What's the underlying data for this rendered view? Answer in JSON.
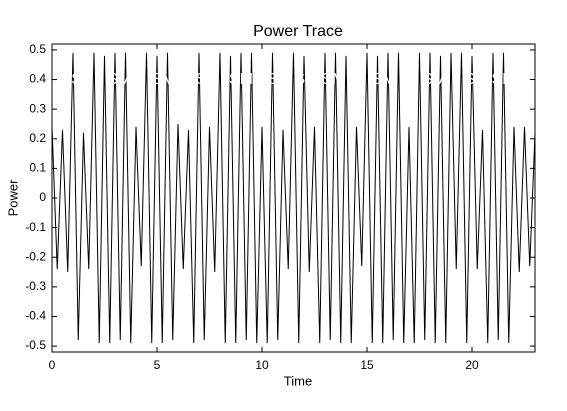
{
  "chart_data": {
    "type": "line",
    "title": "Power Trace",
    "x_label": "Time",
    "y_label": "Power",
    "color": "#000000",
    "x": [
      0,
      0.25,
      0.5,
      0.75,
      1,
      1.25,
      1.5,
      1.75,
      2,
      2.25,
      2.5,
      2.75,
      3,
      3.25,
      3.5,
      3.75,
      4,
      4.25,
      4.5,
      4.75,
      5,
      5.25,
      5.5,
      5.75,
      6,
      6.25,
      6.5,
      6.75,
      7,
      7.25,
      7.5,
      7.75,
      8,
      8.25,
      8.5,
      8.75,
      9,
      9.25,
      9.5,
      9.75,
      10,
      10.25,
      10.5,
      10.75,
      11,
      11.25,
      11.5,
      11.75,
      12,
      12.25,
      12.5,
      12.75,
      13,
      13.25,
      13.5,
      13.75,
      14,
      14.25,
      14.5,
      14.75,
      15,
      15.25,
      15.5,
      15.75,
      16,
      16.25,
      16.5,
      16.75,
      17,
      17.25,
      17.5,
      17.75,
      18,
      18.25,
      18.5,
      18.75,
      19,
      19.25,
      19.5,
      19.75,
      20,
      20.25,
      20.5,
      20.75,
      21,
      21.25,
      21.5,
      21.75,
      22,
      22.25,
      22.5,
      22.75,
      23
    ],
    "values": [
      0.24,
      -0.24,
      0.23,
      -0.25,
      0.49,
      -0.48,
      0.22,
      -0.24,
      0.49,
      -0.49,
      0.48,
      -0.49,
      0.49,
      -0.48,
      0.49,
      -0.49,
      0.24,
      -0.23,
      0.49,
      -0.49,
      0.48,
      -0.49,
      0.49,
      -0.48,
      0.25,
      -0.24,
      0.23,
      -0.49,
      0.49,
      -0.48,
      0.24,
      -0.25,
      0.49,
      -0.49,
      0.48,
      -0.49,
      0.49,
      -0.48,
      0.49,
      -0.49,
      0.24,
      -0.49,
      0.49,
      -0.48,
      0.23,
      -0.24,
      0.49,
      -0.49,
      0.48,
      -0.25,
      0.24,
      -0.49,
      0.49,
      -0.48,
      0.49,
      -0.49,
      0.48,
      -0.49,
      0.24,
      -0.23,
      0.49,
      -0.49,
      0.48,
      -0.49,
      0.49,
      -0.48,
      0.49,
      -0.49,
      0.24,
      -0.49,
      0.49,
      -0.48,
      0.49,
      -0.49,
      0.48,
      -0.49,
      0.49,
      -0.24,
      0.49,
      -0.49,
      0.48,
      -0.24,
      0.23,
      -0.49,
      0.49,
      -0.48,
      0.49,
      -0.49,
      0.24,
      -0.25,
      0.24,
      -0.23,
      0.22
    ],
    "xlim": [
      0,
      23
    ],
    "xticks": [
      0,
      5,
      10,
      15,
      20
    ],
    "ylim": [
      -0.52,
      0.52
    ],
    "yticks": [
      -0.5,
      -0.4,
      -0.3,
      -0.2,
      -0.1,
      0,
      0.1,
      0.2,
      0.3,
      0.4,
      0.5
    ],
    "annotations": [
      {
        "text": "S",
        "x": 1.17,
        "y": 0.4
      },
      {
        "text": "SM",
        "x": 3.2,
        "y": 0.4
      },
      {
        "text": "SM",
        "x": 5.3,
        "y": 0.4
      },
      {
        "text": "S",
        "x": 7.1,
        "y": 0.4
      },
      {
        "text": "SM",
        "x": 9.0,
        "y": 0.4
      },
      {
        "text": "S",
        "x": 10.5,
        "y": 0.4
      },
      {
        "text": "S",
        "x": 11.8,
        "y": 0.4
      },
      {
        "text": "SM",
        "x": 13.4,
        "y": 0.4
      },
      {
        "text": "SM",
        "x": 15.8,
        "y": 0.4
      },
      {
        "text": "SM",
        "x": 18.2,
        "y": 0.4
      },
      {
        "text": "S",
        "x": 19.9,
        "y": 0.4
      },
      {
        "text": "SM",
        "x": 21.5,
        "y": 0.4
      }
    ]
  }
}
